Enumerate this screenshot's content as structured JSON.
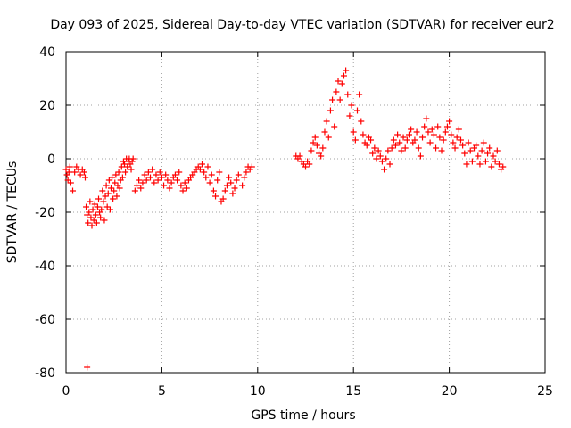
{
  "chart_data": {
    "type": "scatter",
    "title": "Day 093 of 2025, Sidereal Day-to-day VTEC variation (SDTVAR) for receiver eur2",
    "xlabel": "GPS time / hours",
    "ylabel": "SDTVAR / TECUs",
    "xlim": [
      0,
      25
    ],
    "ylim": [
      -80,
      40
    ],
    "xticks": [
      0,
      5,
      10,
      15,
      20,
      25
    ],
    "yticks": [
      -80,
      -60,
      -40,
      -20,
      0,
      20,
      40
    ],
    "grid": true,
    "marker": "+",
    "color": "#ff0000",
    "series": [
      {
        "name": "SDTVAR",
        "x": [
          0.0,
          0.05,
          0.1,
          0.15,
          0.2,
          0.25,
          0.35,
          0.45,
          0.55,
          0.65,
          0.75,
          0.85,
          0.95,
          1.0,
          1.05,
          1.1,
          1.15,
          1.2,
          1.25,
          1.3,
          1.35,
          1.4,
          1.45,
          1.5,
          1.55,
          1.6,
          1.65,
          1.7,
          1.75,
          1.8,
          1.85,
          1.9,
          1.95,
          2.0,
          2.05,
          2.1,
          2.15,
          2.2,
          2.25,
          2.3,
          2.35,
          2.4,
          2.45,
          2.5,
          2.55,
          2.6,
          2.65,
          2.7,
          2.75,
          2.8,
          2.85,
          2.9,
          2.95,
          3.0,
          3.05,
          3.1,
          3.15,
          3.2,
          3.25,
          3.3,
          3.35,
          3.4,
          3.45,
          3.5,
          3.6,
          3.7,
          3.8,
          3.9,
          4.0,
          4.1,
          4.2,
          4.3,
          4.4,
          4.5,
          4.6,
          4.7,
          4.8,
          4.9,
          5.0,
          5.1,
          5.2,
          5.3,
          5.4,
          5.5,
          5.6,
          5.7,
          5.8,
          5.9,
          6.0,
          6.1,
          6.2,
          6.3,
          6.4,
          6.5,
          6.6,
          6.7,
          6.8,
          6.9,
          7.0,
          7.1,
          7.2,
          7.3,
          7.4,
          7.5,
          7.6,
          7.7,
          7.8,
          7.9,
          8.0,
          8.1,
          8.2,
          8.3,
          8.4,
          8.5,
          8.6,
          8.7,
          8.8,
          8.9,
          9.0,
          9.2,
          9.3,
          9.4,
          9.5,
          9.6,
          9.7,
          12.0,
          12.1,
          12.2,
          12.3,
          12.4,
          12.5,
          12.6,
          12.7,
          12.8,
          12.9,
          13.0,
          13.1,
          13.2,
          13.3,
          13.4,
          13.5,
          13.6,
          13.7,
          13.8,
          13.9,
          14.0,
          14.1,
          14.2,
          14.3,
          14.4,
          14.5,
          14.6,
          14.7,
          14.8,
          14.9,
          15.0,
          15.1,
          15.2,
          15.3,
          15.4,
          15.5,
          15.6,
          15.7,
          15.8,
          15.9,
          16.0,
          16.1,
          16.2,
          16.3,
          16.4,
          16.5,
          16.6,
          16.7,
          16.8,
          16.9,
          17.0,
          17.1,
          17.2,
          17.3,
          17.4,
          17.5,
          17.6,
          17.7,
          17.8,
          17.9,
          18.0,
          18.1,
          18.2,
          18.3,
          18.4,
          18.5,
          18.6,
          18.7,
          18.8,
          18.9,
          19.0,
          19.1,
          19.2,
          19.3,
          19.4,
          19.5,
          19.6,
          19.7,
          19.8,
          19.9,
          20.0,
          20.1,
          20.2,
          20.3,
          20.4,
          20.5,
          20.6,
          20.7,
          20.8,
          20.9,
          21.0,
          21.1,
          21.2,
          21.3,
          21.4,
          21.5,
          21.6,
          21.7,
          21.8,
          21.9,
          22.0,
          22.1,
          22.2,
          22.3,
          22.4,
          22.5,
          22.6,
          22.7,
          22.8,
          1.1
        ],
        "y": [
          -4,
          -6,
          -8,
          -5,
          -3,
          -9,
          -12,
          -5,
          -3,
          -4,
          -6,
          -4,
          -5,
          -7,
          -18,
          -21,
          -24,
          -20,
          -16,
          -22,
          -25,
          -19,
          -23,
          -17,
          -21,
          -24,
          -18,
          -15,
          -20,
          -22,
          -19,
          -12,
          -16,
          -23,
          -14,
          -10,
          -18,
          -13,
          -8,
          -19,
          -11,
          -7,
          -15,
          -12,
          -9,
          -6,
          -14,
          -10,
          -5,
          -11,
          -8,
          -3,
          -7,
          -1,
          -2,
          -5,
          0,
          -3,
          -1,
          0,
          -2,
          -4,
          -1,
          0,
          -12,
          -10,
          -8,
          -11,
          -9,
          -6,
          -8,
          -5,
          -7,
          -4,
          -9,
          -6,
          -8,
          -5,
          -7,
          -10,
          -6,
          -8,
          -11,
          -9,
          -7,
          -6,
          -8,
          -5,
          -10,
          -12,
          -9,
          -11,
          -8,
          -7,
          -6,
          -5,
          -4,
          -3,
          -4,
          -2,
          -5,
          -7,
          -3,
          -9,
          -6,
          -12,
          -14,
          -8,
          -5,
          -16,
          -15,
          -12,
          -10,
          -7,
          -9,
          -13,
          -11,
          -8,
          -6,
          -10,
          -7,
          -5,
          -3,
          -4,
          -3,
          1,
          0,
          1,
          -1,
          -2,
          -3,
          -1,
          -2,
          3,
          6,
          8,
          5,
          2,
          1,
          4,
          10,
          14,
          8,
          18,
          22,
          12,
          25,
          29,
          22,
          28,
          31,
          33,
          24,
          16,
          20,
          10,
          7,
          18,
          24,
          14,
          9,
          6,
          5,
          8,
          7,
          2,
          4,
          0,
          3,
          1,
          -1,
          -4,
          0,
          3,
          -2,
          4,
          7,
          5,
          9,
          6,
          3,
          8,
          4,
          7,
          9,
          11,
          6,
          7,
          10,
          4,
          1,
          8,
          12,
          15,
          10,
          6,
          11,
          9,
          4,
          12,
          8,
          3,
          7,
          10,
          12,
          14,
          9,
          6,
          4,
          8,
          11,
          7,
          5,
          2,
          -2,
          6,
          3,
          -1,
          4,
          5,
          1,
          -2,
          3,
          6,
          -1,
          2,
          4,
          -3,
          1,
          -1,
          3,
          -2,
          -4,
          -3,
          -78
        ]
      }
    ]
  }
}
